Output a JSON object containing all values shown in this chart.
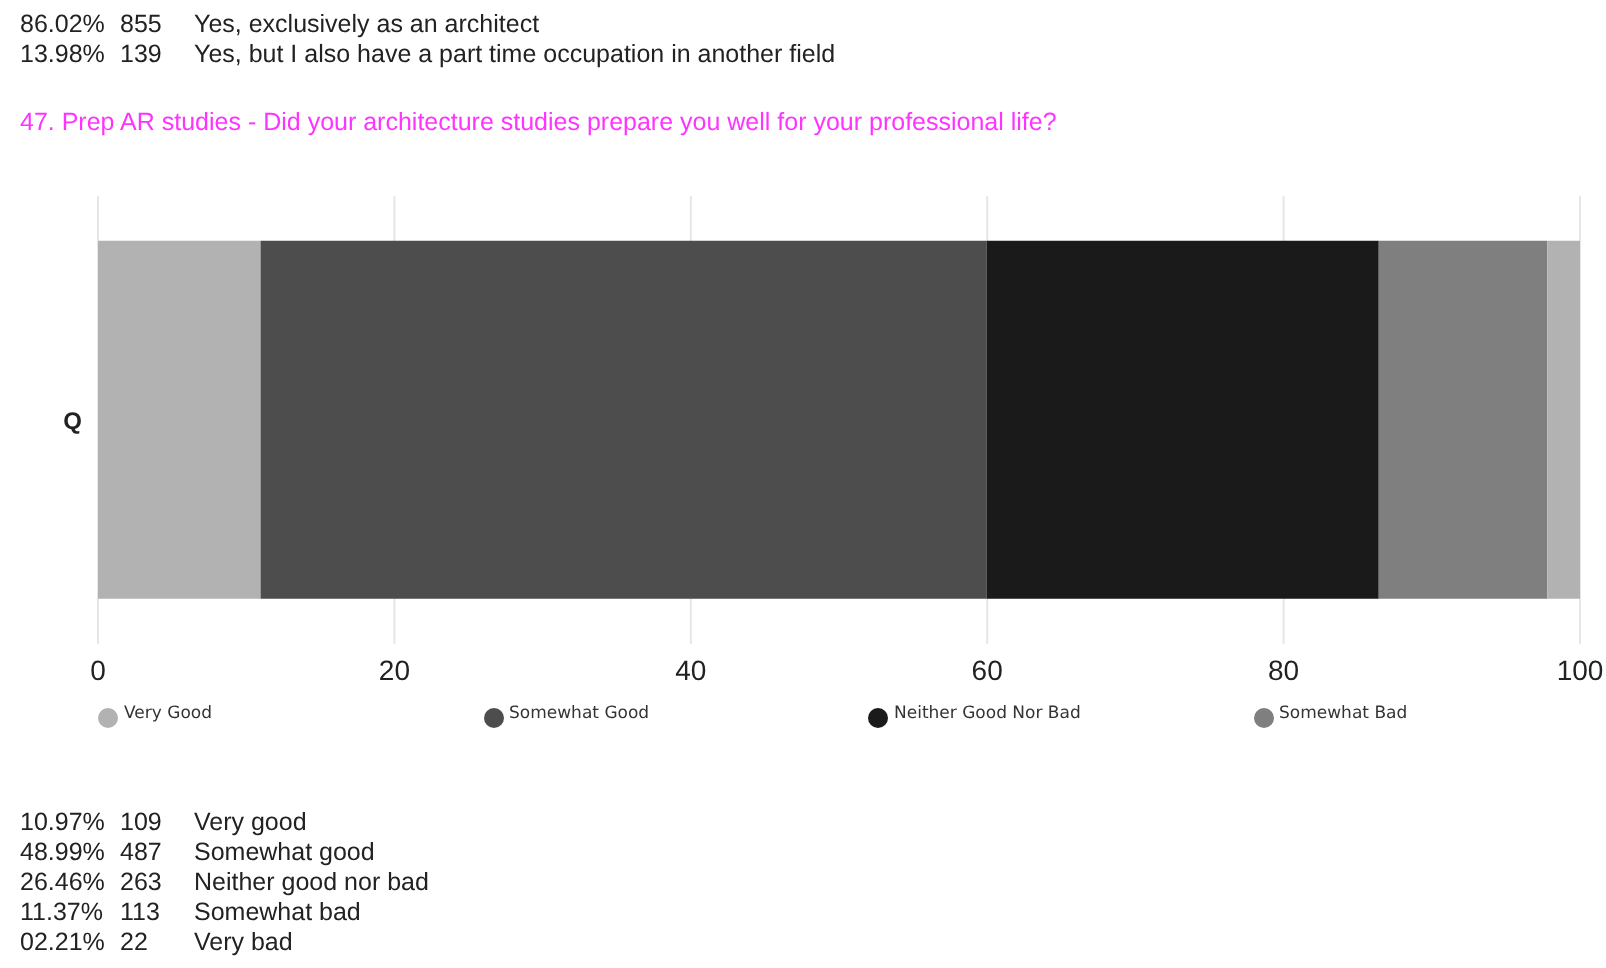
{
  "chart_data": {
    "type": "bar",
    "orientation": "horizontal",
    "stacked": true,
    "title": "47. Prep AR studies - Did your architecture studies prepare you well for your professional life?",
    "categories": [
      "Q"
    ],
    "series": [
      {
        "name": "Very Good",
        "color": "#b2b2b2",
        "values": [
          10.97
        ]
      },
      {
        "name": "Somewhat Good",
        "color": "#4d4d4d",
        "values": [
          48.99
        ]
      },
      {
        "name": "Neither Good Nor Bad",
        "color": "#1a1a1a",
        "values": [
          26.46
        ]
      },
      {
        "name": "Somewhat Bad",
        "color": "#7f7f7f",
        "values": [
          11.37
        ]
      },
      {
        "color": "#b2b2b2",
        "values": [
          2.21
        ]
      }
    ],
    "xlim": [
      0,
      100
    ],
    "xticks": [
      0,
      20,
      40,
      60,
      80,
      100
    ],
    "grid": "x",
    "legend": "bottom",
    "marker": "circle",
    "annotations": [
      "86.02% 855 Yes, exclusively as an architect",
      "13.98% 139 Yes, but I also have a part time occupation in another field",
      "10.97% 109 Very good",
      "48.99% 487 Somewhat good",
      "26.46% 263 Neither good nor bad",
      "11.37% 113 Somewhat bad",
      "02.21% 22 Very bad"
    ]
  }
}
